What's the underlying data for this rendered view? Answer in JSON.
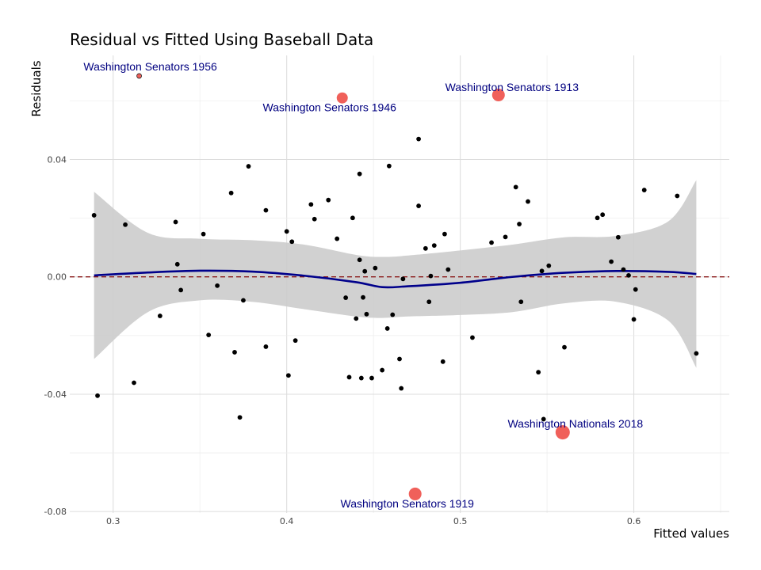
{
  "chart_data": {
    "type": "scatter",
    "title": "Residual vs Fitted Using Baseball Data",
    "xlabel": "Fitted values",
    "ylabel": "Residuals",
    "xlim": [
      0.275,
      0.655
    ],
    "ylim": [
      -0.0805,
      0.0755
    ],
    "xticks": [
      0.3,
      0.4,
      0.5,
      0.6
    ],
    "xtick_labels": [
      "0.3",
      "0.4",
      "0.5",
      "0.6"
    ],
    "yticks": [
      -0.08,
      -0.04,
      0.0,
      0.04
    ],
    "ytick_labels": [
      "-0.08",
      "-0.04",
      "0.00",
      "0.04"
    ],
    "grid": true,
    "reference_line": {
      "y": 0,
      "style": "dashed",
      "color": "#8b1a1a"
    },
    "colors": {
      "points": "#000000",
      "outliers": "#f0605a",
      "smooth": "#00008b",
      "band": "#cccccc",
      "labels": "#000080"
    },
    "points": [
      {
        "x": 0.289,
        "y": 0.021
      },
      {
        "x": 0.291,
        "y": -0.0405
      },
      {
        "x": 0.307,
        "y": 0.0178
      },
      {
        "x": 0.312,
        "y": -0.0361
      },
      {
        "x": 0.327,
        "y": -0.0133
      },
      {
        "x": 0.336,
        "y": 0.0187
      },
      {
        "x": 0.337,
        "y": 0.0043
      },
      {
        "x": 0.339,
        "y": -0.0045
      },
      {
        "x": 0.352,
        "y": 0.0146
      },
      {
        "x": 0.355,
        "y": -0.0198
      },
      {
        "x": 0.36,
        "y": -0.003
      },
      {
        "x": 0.368,
        "y": 0.0286
      },
      {
        "x": 0.37,
        "y": -0.0257
      },
      {
        "x": 0.373,
        "y": -0.0479
      },
      {
        "x": 0.375,
        "y": -0.008
      },
      {
        "x": 0.378,
        "y": 0.0377
      },
      {
        "x": 0.388,
        "y": -0.0238
      },
      {
        "x": 0.388,
        "y": 0.0227
      },
      {
        "x": 0.4,
        "y": 0.0155
      },
      {
        "x": 0.401,
        "y": -0.0336
      },
      {
        "x": 0.403,
        "y": 0.012
      },
      {
        "x": 0.405,
        "y": -0.0217
      },
      {
        "x": 0.414,
        "y": 0.0247
      },
      {
        "x": 0.416,
        "y": 0.0197
      },
      {
        "x": 0.424,
        "y": 0.0262
      },
      {
        "x": 0.429,
        "y": 0.013
      },
      {
        "x": 0.434,
        "y": -0.0071
      },
      {
        "x": 0.436,
        "y": -0.0342
      },
      {
        "x": 0.438,
        "y": 0.0201
      },
      {
        "x": 0.44,
        "y": -0.0142
      },
      {
        "x": 0.442,
        "y": 0.0351
      },
      {
        "x": 0.442,
        "y": 0.0058
      },
      {
        "x": 0.443,
        "y": -0.0345
      },
      {
        "x": 0.444,
        "y": -0.007
      },
      {
        "x": 0.445,
        "y": 0.0019
      },
      {
        "x": 0.446,
        "y": -0.0127
      },
      {
        "x": 0.449,
        "y": -0.0345
      },
      {
        "x": 0.451,
        "y": 0.003
      },
      {
        "x": 0.455,
        "y": -0.0318
      },
      {
        "x": 0.458,
        "y": -0.0176
      },
      {
        "x": 0.459,
        "y": 0.0378
      },
      {
        "x": 0.461,
        "y": -0.0129
      },
      {
        "x": 0.465,
        "y": -0.028
      },
      {
        "x": 0.466,
        "y": -0.038
      },
      {
        "x": 0.467,
        "y": -0.0007
      },
      {
        "x": 0.476,
        "y": 0.047
      },
      {
        "x": 0.476,
        "y": 0.0242
      },
      {
        "x": 0.48,
        "y": 0.0097
      },
      {
        "x": 0.482,
        "y": -0.0085
      },
      {
        "x": 0.483,
        "y": 0.0003
      },
      {
        "x": 0.485,
        "y": 0.0107
      },
      {
        "x": 0.49,
        "y": -0.0289
      },
      {
        "x": 0.491,
        "y": 0.0146
      },
      {
        "x": 0.493,
        "y": 0.0025
      },
      {
        "x": 0.507,
        "y": -0.0207
      },
      {
        "x": 0.518,
        "y": 0.0117
      },
      {
        "x": 0.526,
        "y": 0.0136
      },
      {
        "x": 0.532,
        "y": 0.0306
      },
      {
        "x": 0.534,
        "y": 0.018
      },
      {
        "x": 0.535,
        "y": -0.0085
      },
      {
        "x": 0.539,
        "y": 0.0257
      },
      {
        "x": 0.545,
        "y": -0.0325
      },
      {
        "x": 0.547,
        "y": 0.002
      },
      {
        "x": 0.548,
        "y": -0.0485
      },
      {
        "x": 0.551,
        "y": 0.0038
      },
      {
        "x": 0.56,
        "y": -0.024
      },
      {
        "x": 0.579,
        "y": 0.0201
      },
      {
        "x": 0.582,
        "y": 0.0212
      },
      {
        "x": 0.587,
        "y": 0.0052
      },
      {
        "x": 0.591,
        "y": 0.0135
      },
      {
        "x": 0.594,
        "y": 0.0025
      },
      {
        "x": 0.597,
        "y": 0.0005
      },
      {
        "x": 0.6,
        "y": -0.0145
      },
      {
        "x": 0.601,
        "y": -0.0043
      },
      {
        "x": 0.606,
        "y": 0.0296
      },
      {
        "x": 0.625,
        "y": 0.0276
      },
      {
        "x": 0.636,
        "y": -0.0261
      }
    ],
    "outliers": [
      {
        "label": "Washington Senators 1956",
        "x": 0.315,
        "y": 0.0685,
        "size": 3
      },
      {
        "label": "Washington Senators 1946",
        "x": 0.432,
        "y": 0.061,
        "size": 7
      },
      {
        "label": "Washington Senators 1913",
        "x": 0.522,
        "y": 0.062,
        "size": 8
      },
      {
        "label": "Washington Nationals 2018",
        "x": 0.559,
        "y": -0.053,
        "size": 9
      },
      {
        "label": "Washington Senators 1919",
        "x": 0.474,
        "y": -0.074,
        "size": 8
      }
    ],
    "smooth": {
      "x": [
        0.289,
        0.32,
        0.35,
        0.38,
        0.41,
        0.44,
        0.455,
        0.47,
        0.5,
        0.53,
        0.56,
        0.59,
        0.62,
        0.636
      ],
      "y": [
        0.0005,
        0.0015,
        0.0021,
        0.0018,
        0.0004,
        -0.0018,
        -0.0035,
        -0.0032,
        -0.002,
        0.0,
        0.0014,
        0.002,
        0.0017,
        0.001
      ],
      "low": [
        -0.028,
        -0.012,
        -0.008,
        -0.0085,
        -0.011,
        -0.0135,
        -0.014,
        -0.0135,
        -0.013,
        -0.012,
        -0.009,
        -0.0085,
        -0.015,
        -0.031
      ],
      "high": [
        0.029,
        0.015,
        0.013,
        0.0125,
        0.011,
        0.0075,
        0.0068,
        0.0073,
        0.009,
        0.011,
        0.0135,
        0.014,
        0.019,
        0.033
      ]
    }
  }
}
